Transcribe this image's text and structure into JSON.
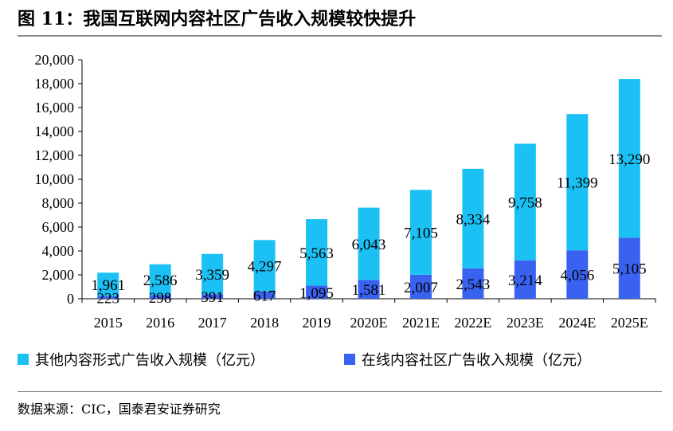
{
  "title": "图 11：我国互联网内容社区广告收入规模较快提升",
  "source": "数据来源：CIC，国泰君安证券研究",
  "colors": {
    "other": "#1BC1F5",
    "online": "#3A62F0",
    "axis": "#000000"
  },
  "chart_data": {
    "type": "bar",
    "stacked": true,
    "categories": [
      "2015",
      "2016",
      "2017",
      "2018",
      "2019",
      "2020E",
      "2021E",
      "2022E",
      "2023E",
      "2024E",
      "2025E"
    ],
    "series": [
      {
        "name": "在线内容社区广告收入规模（亿元）",
        "color": "#3A62F0",
        "values": [
          223,
          298,
          391,
          617,
          1095,
          1581,
          2007,
          2543,
          3214,
          4056,
          5105
        ],
        "labels": [
          "223",
          "298",
          "391",
          "617",
          "1,095",
          "1,581",
          "2,007",
          "2,543",
          "3,214",
          "4,056",
          "5,105"
        ]
      },
      {
        "name": "其他内容形式广告收入规模（亿元）",
        "color": "#1BC1F5",
        "values": [
          1961,
          2586,
          3359,
          4297,
          5563,
          6043,
          7105,
          8334,
          9758,
          11399,
          13290
        ],
        "labels": [
          "1,961",
          "2,586",
          "3,359",
          "4,297",
          "5,563",
          "6,043",
          "7,105",
          "8,334",
          "9,758",
          "11,399",
          "13,290"
        ]
      }
    ],
    "ylim": [
      0,
      20000
    ],
    "yticks": [
      0,
      2000,
      4000,
      6000,
      8000,
      10000,
      12000,
      14000,
      16000,
      18000,
      20000
    ],
    "ytick_labels": [
      "0",
      "2,000",
      "4,000",
      "6,000",
      "8,000",
      "10,000",
      "12,000",
      "14,000",
      "16,000",
      "18,000",
      "20,000"
    ],
    "grid": false,
    "legend_position": "bottom"
  }
}
